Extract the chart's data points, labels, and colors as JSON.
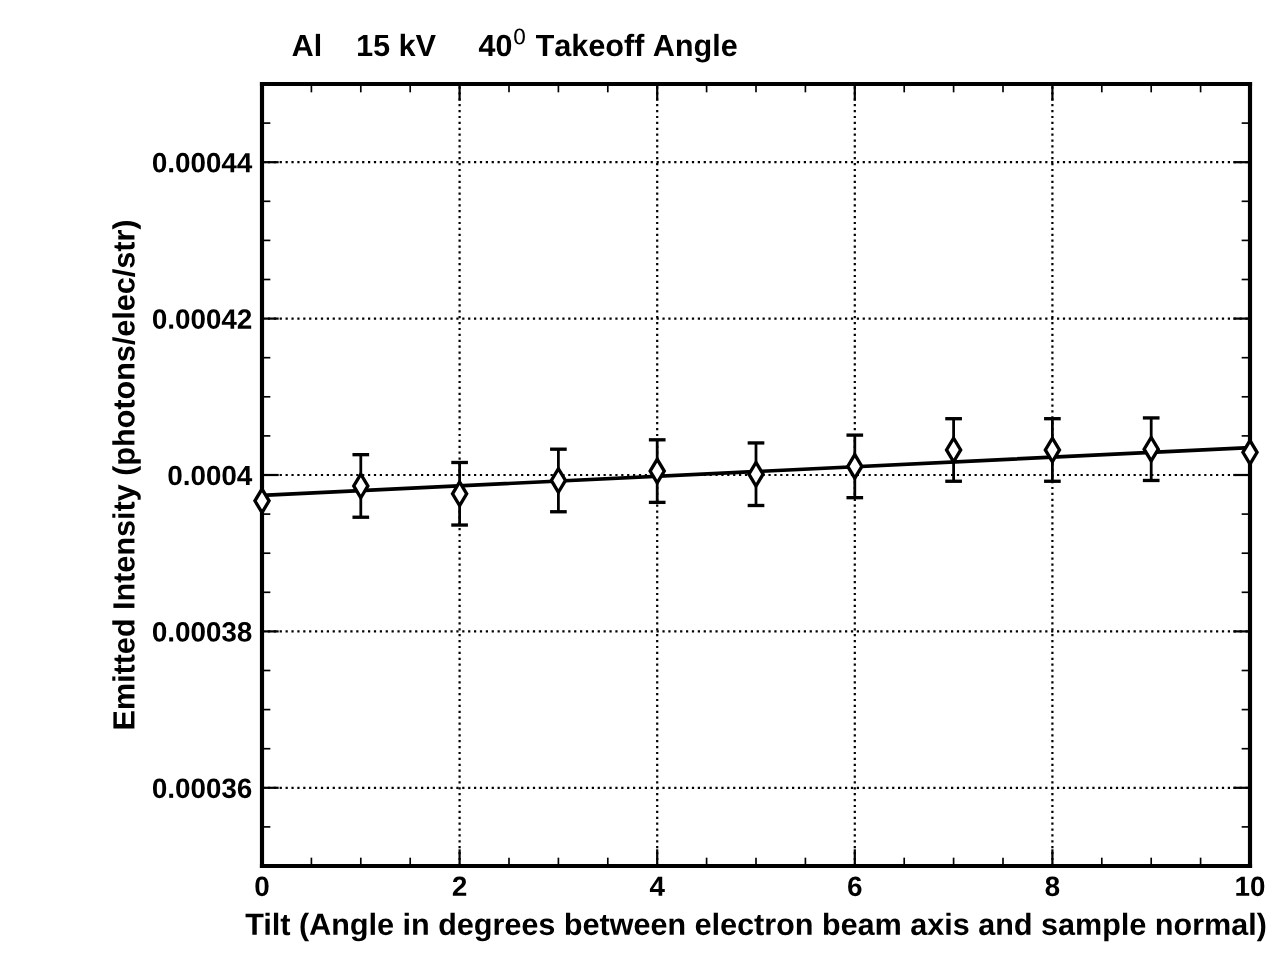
{
  "chart_data": {
    "type": "scatter",
    "title": "Al    15 kV     40$^{0}$ Takeoff Angle",
    "xlabel": "Tilt (Angle in degrees between electron beam axis and sample normal)",
    "ylabel": "Emitted Intensity (photons/elec/str)",
    "x": [
      0,
      1,
      2,
      3,
      4,
      5,
      6,
      7,
      8,
      9,
      10
    ],
    "series": [
      {
        "color": "#000000",
        "marker": "diamond",
        "values": [
          0.0003967,
          0.0003986,
          0.0003976,
          0.0003993,
          0.0004005,
          0.0004001,
          0.0004011,
          0.0004032,
          0.0004032,
          0.0004033,
          0.0004029
        ],
        "errors": [
          null,
          4e-06,
          4e-06,
          4e-06,
          4e-06,
          4e-06,
          4e-06,
          4e-06,
          4e-06,
          4e-06,
          null
        ]
      },
      {
        "type": "line",
        "color": "#000000",
        "line_style": "solid",
        "x": [
          0,
          10
        ],
        "values": [
          0.0003974,
          0.0004035
        ]
      }
    ],
    "xlim": [
      0,
      10
    ],
    "xticks": [
      0,
      2,
      4,
      6,
      8,
      10
    ],
    "ylim": [
      0.00035,
      0.00045
    ],
    "yticks": [
      0.00036,
      0.00038,
      0.0004,
      0.00042,
      0.00044
    ],
    "grid": true
  }
}
